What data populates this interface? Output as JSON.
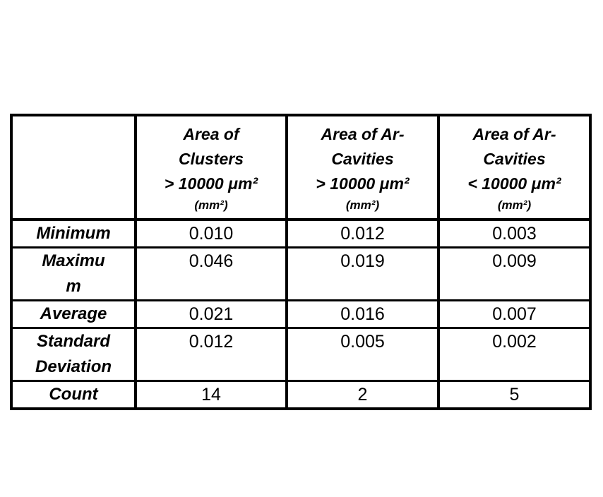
{
  "page": {
    "background": "#ffffff",
    "border_color": "#000000",
    "text_color": "#000000"
  },
  "table": {
    "columns": [
      {
        "title": "",
        "unit": ""
      },
      {
        "title": "Area of\nClusters\n> 10000 μm²",
        "unit": "(mm²)"
      },
      {
        "title": "Area of Ar-\nCavities\n> 10000 μm²",
        "unit": "(mm²)"
      },
      {
        "title": "Area of Ar-\nCavities\n< 10000 μm²",
        "unit": "(mm²)"
      }
    ],
    "rows": [
      {
        "label": "Minimum",
        "values": [
          "0.010",
          "0.012",
          "0.003"
        ]
      },
      {
        "label": "Maximu\nm",
        "values": [
          "0.046",
          "0.019",
          "0.009"
        ]
      },
      {
        "label": "Average",
        "values": [
          "0.021",
          "0.016",
          "0.007"
        ]
      },
      {
        "label": "Standard\nDeviation",
        "values": [
          "0.012",
          "0.005",
          "0.002"
        ]
      },
      {
        "label": "Count",
        "values": [
          "14",
          "2",
          "5"
        ]
      }
    ]
  }
}
